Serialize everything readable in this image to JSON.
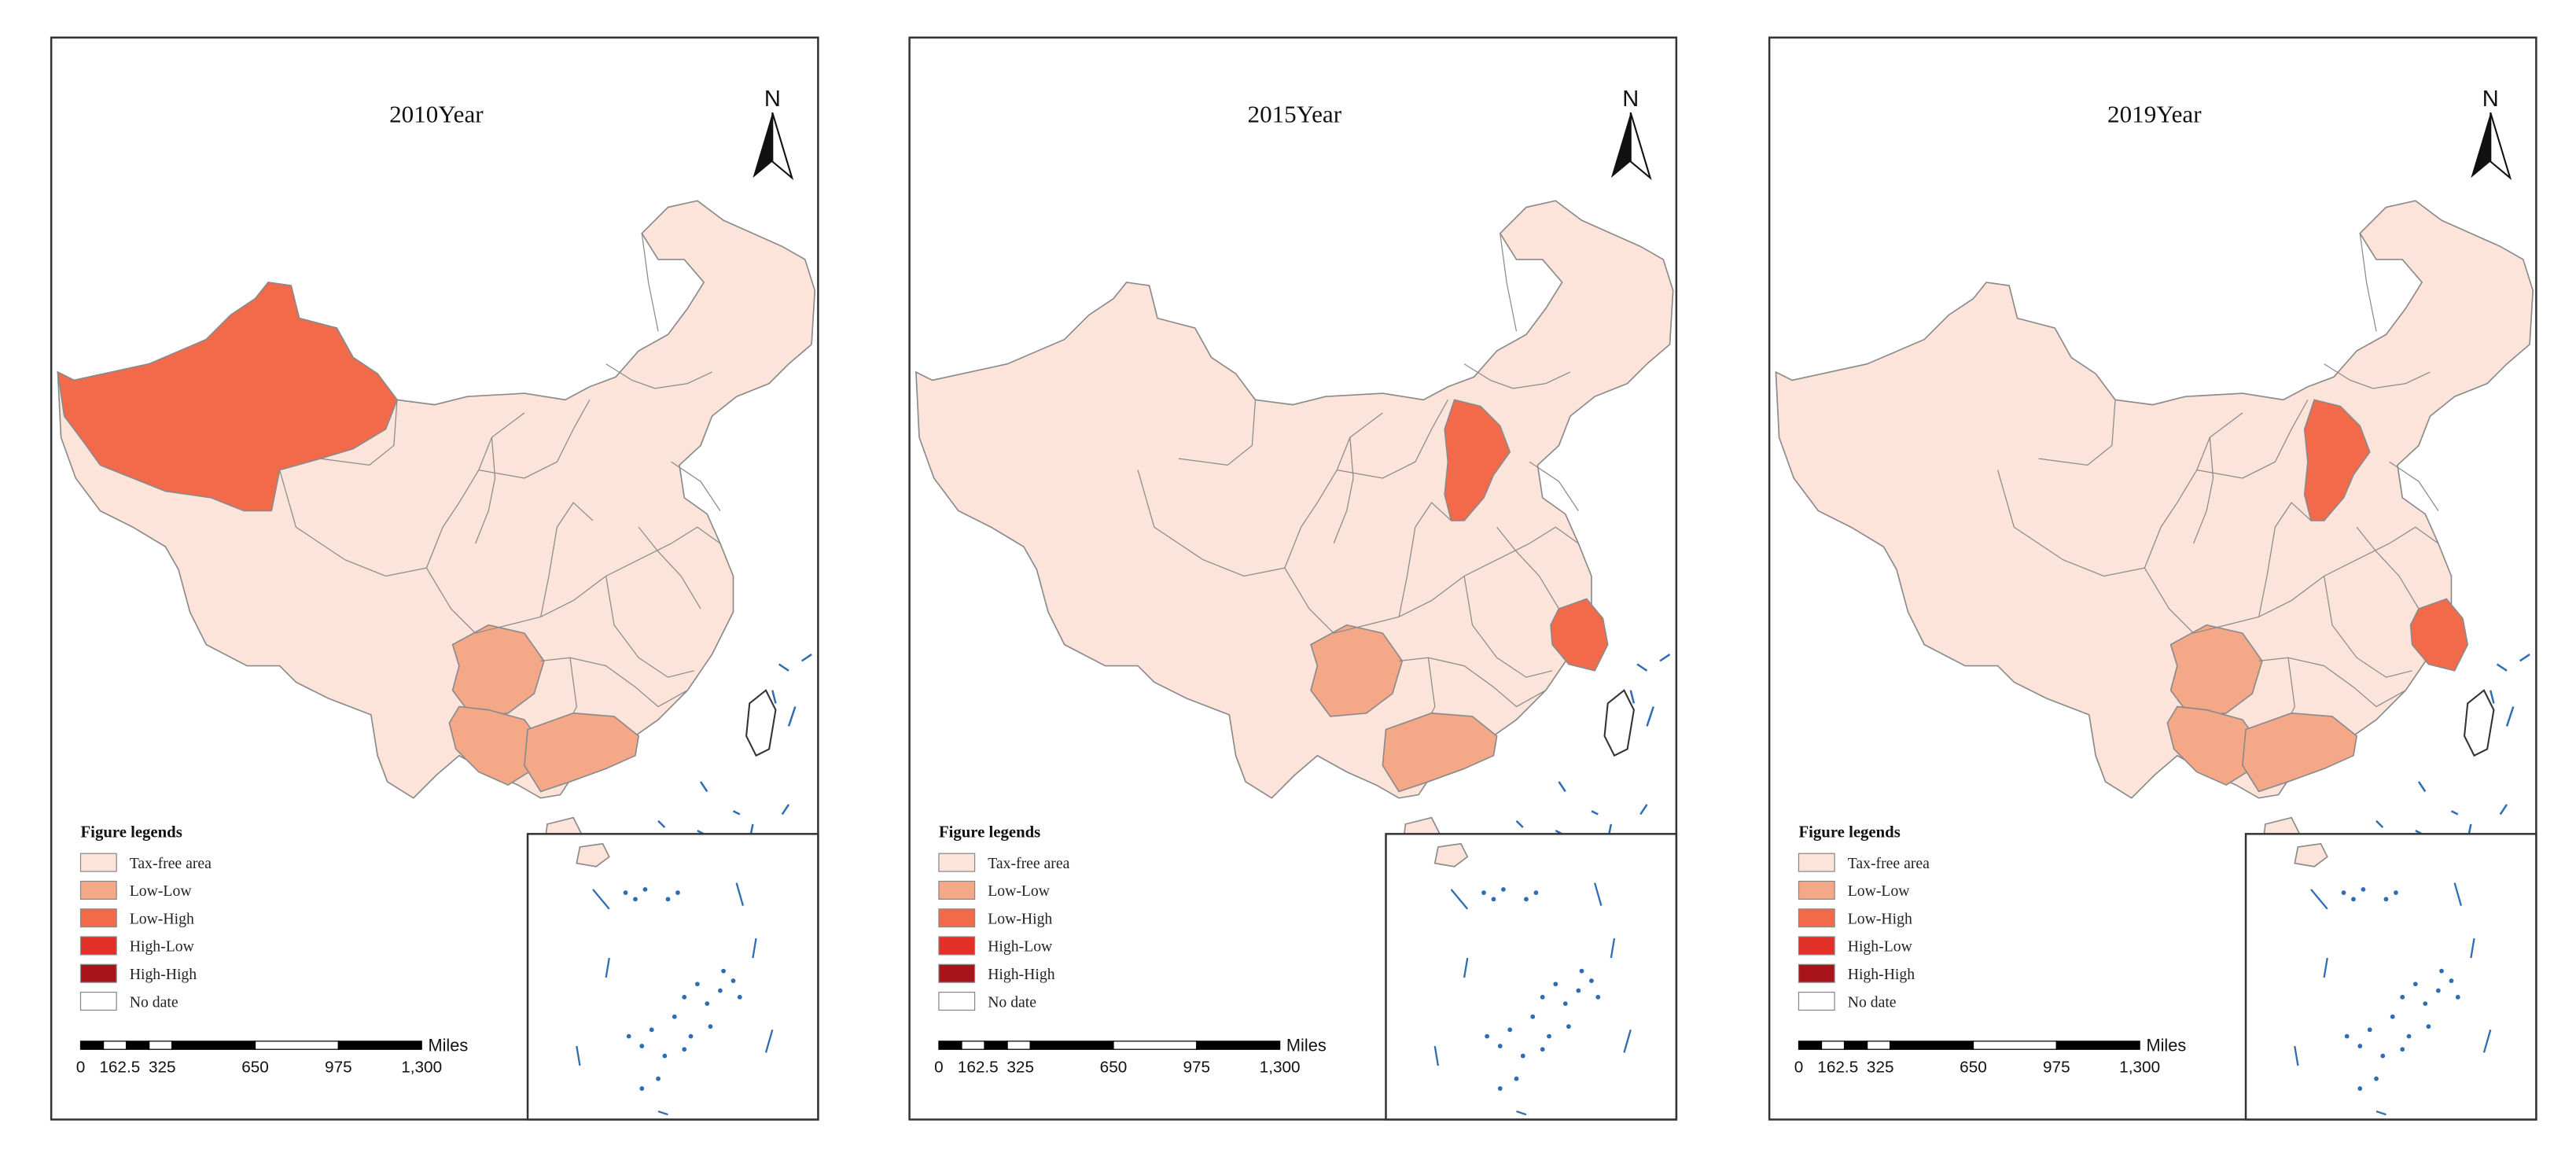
{
  "colors": {
    "tax_free": "#fce4da",
    "low_low": "#f5a888",
    "low_high": "#f26a4a",
    "high_low": "#e03028",
    "high_high": "#a8141a",
    "no_data": "#ffffff",
    "border": "#8a8a8a",
    "islands": "#2e6db4"
  },
  "legend": {
    "title": "Figure legends",
    "items": [
      {
        "label": "Tax-free area",
        "color": "#fce4da"
      },
      {
        "label": "Low-Low",
        "color": "#f5a888"
      },
      {
        "label": "Low-High",
        "color": "#f26a4a"
      },
      {
        "label": "High-Low",
        "color": "#e03028"
      },
      {
        "label": "High-High",
        "color": "#a8141a"
      },
      {
        "label": "No date",
        "color": "#ffffff"
      }
    ]
  },
  "scale_bar": {
    "labels": [
      "0",
      "162.5",
      "325",
      "650",
      "975",
      "1,300"
    ],
    "unit": "Miles"
  },
  "north_arrow": "N",
  "maps": [
    {
      "title": "2010Year",
      "highlights": [
        {
          "region": "Xinjiang",
          "class": "low_high"
        },
        {
          "region": "Guizhou",
          "class": "low_low"
        },
        {
          "region": "Guangxi",
          "class": "low_low"
        },
        {
          "region": "Guangdong",
          "class": "low_low"
        }
      ]
    },
    {
      "title": "2015Year",
      "highlights": [
        {
          "region": "Hebei",
          "class": "low_high"
        },
        {
          "region": "Zhejiang",
          "class": "low_high"
        },
        {
          "region": "Guizhou",
          "class": "low_low"
        },
        {
          "region": "Guangdong",
          "class": "low_low"
        }
      ]
    },
    {
      "title": "2019Year",
      "highlights": [
        {
          "region": "Hebei",
          "class": "low_high"
        },
        {
          "region": "Zhejiang",
          "class": "low_high"
        },
        {
          "region": "Guizhou",
          "class": "low_low"
        },
        {
          "region": "Guangxi",
          "class": "low_low"
        },
        {
          "region": "Guangdong",
          "class": "low_low"
        }
      ]
    }
  ]
}
